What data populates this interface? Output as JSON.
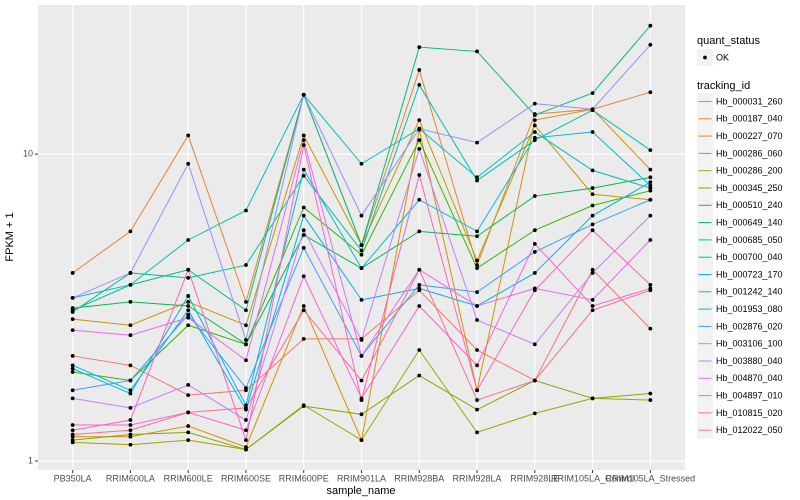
{
  "chart_data": {
    "type": "line",
    "x_label": "sample_name",
    "y_label": "FPKM + 1",
    "categories": [
      "PB350LA",
      "RRIM600LA",
      "RRIM600LE",
      "RRIM600SE",
      "RRIM600PE",
      "RRIM901LA",
      "RRIM928BA",
      "RRIM928LA",
      "RRIM928LE",
      "RRIM105LA_Control",
      "RRIM105LA_Stressed"
    ],
    "log_y": true,
    "ylim": [
      0.935,
      30.6
    ],
    "yticks": [
      1,
      10
    ],
    "grid": true,
    "point_legend": {
      "title": "quant_status",
      "labels": [
        "OK"
      ],
      "color": "#000000"
    },
    "legend_title": "tracking_id",
    "legend_position": "right",
    "series": [
      {
        "name": "Hb_000031_260",
        "color": "#F8766D",
        "values": [
          2.2,
          2.05,
          1.64,
          1.7,
          2.5,
          2.5,
          3.6,
          2.3,
          1.83,
          4.2,
          2.7
        ]
      },
      {
        "name": "Hb_000187_040",
        "color": "#EA8331",
        "values": [
          4.1,
          5.6,
          11.5,
          3.3,
          15.6,
          5.05,
          18.8,
          4.35,
          13.5,
          14,
          15.9
        ]
      },
      {
        "name": "Hb_000227_070",
        "color": "#D89000",
        "values": [
          1.2,
          1.2,
          1.3,
          1.11,
          3.2,
          1.17,
          12,
          1.7,
          12.9,
          14,
          8.9
        ]
      },
      {
        "name": "Hb_000286_060",
        "color": "#C09B00",
        "values": [
          2.9,
          2.77,
          3.3,
          2.77,
          11.5,
          5.05,
          12.9,
          4.5,
          12.4,
          7.4,
          7.1
        ]
      },
      {
        "name": "Hb_000286_200",
        "color": "#A3A500",
        "values": [
          1.15,
          1.13,
          1.17,
          1.09,
          1.52,
          1.17,
          2.3,
          1.24,
          1.43,
          1.6,
          1.58
        ]
      },
      {
        "name": "Hb_000345_250",
        "color": "#7CAE00",
        "values": [
          1.17,
          1.22,
          1.24,
          1.09,
          1.51,
          1.42,
          1.9,
          1.47,
          1.83,
          1.6,
          1.66
        ]
      },
      {
        "name": "Hb_000510_240",
        "color": "#39B600",
        "values": [
          1.95,
          1.83,
          2.77,
          2.4,
          6.7,
          4.7,
          11.1,
          4.25,
          5.65,
          6.8,
          7.6
        ]
      },
      {
        "name": "Hb_000649_140",
        "color": "#00BB4E",
        "values": [
          3.15,
          3.3,
          3.2,
          2.4,
          5.45,
          4.25,
          5.6,
          5.4,
          7.3,
          7.75,
          8.4
        ]
      },
      {
        "name": "Hb_000685_050",
        "color": "#00BF7D",
        "values": [
          3.1,
          3.75,
          4.2,
          3.1,
          15.6,
          5.05,
          22.3,
          21.6,
          13.4,
          15.8,
          26.2
        ]
      },
      {
        "name": "Hb_000700_040",
        "color": "#00C1A3",
        "values": [
          3.06,
          4.1,
          3.95,
          4.35,
          8.5,
          4.85,
          16.8,
          8.2,
          11.1,
          13.9,
          10.3
        ]
      },
      {
        "name": "Hb_000723_170",
        "color": "#00BFC4",
        "values": [
          3.4,
          3.75,
          5.25,
          6.55,
          15.6,
          9.3,
          12.1,
          8.4,
          11.8,
          8.85,
          7.75
        ]
      },
      {
        "name": "Hb_001242_140",
        "color": "#00BAE0",
        "values": [
          2.0,
          1.66,
          3.45,
          1.52,
          8.9,
          4.25,
          7.1,
          5.6,
          11.3,
          11.8,
          7.9
        ]
      },
      {
        "name": "Hb_001953_080",
        "color": "#00B0F6",
        "values": [
          2.05,
          1.7,
          3.1,
          1.47,
          6.3,
          3.35,
          3.65,
          3.2,
          4.1,
          6.3,
          8.1
        ]
      },
      {
        "name": "Hb_002876_020",
        "color": "#35A2FF",
        "values": [
          1.7,
          1.83,
          3.0,
          1.73,
          4.95,
          2.2,
          3.75,
          3.55,
          4.8,
          5.9,
          7.1
        ]
      },
      {
        "name": "Hb_003106_100",
        "color": "#9590FF",
        "values": [
          3.4,
          4.1,
          9.3,
          2.48,
          15.6,
          6.3,
          12.1,
          10.9,
          14.6,
          14,
          22.7
        ]
      },
      {
        "name": "Hb_003880_040",
        "color": "#C77CFF",
        "values": [
          1.6,
          1.49,
          1.77,
          1.36,
          5.65,
          2.48,
          10.4,
          2.88,
          2.4,
          4.1,
          6.3
        ]
      },
      {
        "name": "Hb_004870_040",
        "color": "#E76BF3",
        "values": [
          2.67,
          2.57,
          2.93,
          2.13,
          11.1,
          2.2,
          4.2,
          3.2,
          3.65,
          3.35,
          5.25
        ]
      },
      {
        "name": "Hb_004897_010",
        "color": "#FA62DB",
        "values": [
          1.31,
          1.31,
          1.44,
          1.26,
          4.0,
          1.6,
          3.2,
          2.05,
          5.1,
          3.2,
          3.65
        ]
      },
      {
        "name": "Hb_010815_020",
        "color": "#FF62BC",
        "values": [
          1.26,
          1.36,
          4.2,
          1.17,
          10.7,
          1.58,
          8.55,
          1.7,
          3.6,
          5.65,
          3.75
        ]
      },
      {
        "name": "Hb_012022_050",
        "color": "#FF6C91",
        "values": [
          1.22,
          1.26,
          1.44,
          1.49,
          3.1,
          1.83,
          4.2,
          1.58,
          1.83,
          3.1,
          3.6
        ]
      }
    ]
  }
}
